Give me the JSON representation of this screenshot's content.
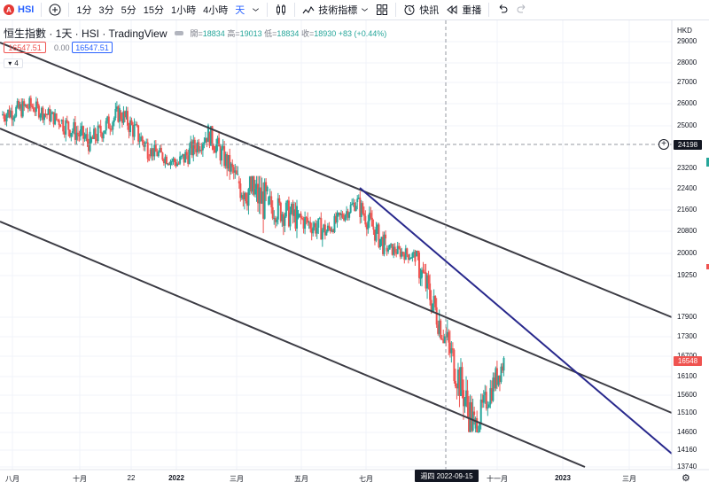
{
  "toolbar": {
    "symbol": "HSI",
    "symbol_logo": "A",
    "intervals": [
      "1分",
      "3分",
      "5分",
      "15分",
      "1小時",
      "4小時",
      "天"
    ],
    "active_interval": "天",
    "indicators_label": "技術指標",
    "alert_label": "快訊",
    "replay_label": "重播",
    "icons": [
      "add-symbol-icon",
      "candles-icon",
      "indicators-icon",
      "layout-icon",
      "alert-icon",
      "replay-icon",
      "undo-icon",
      "redo-icon"
    ]
  },
  "legend": {
    "name": "恒生指數 · 1天 · HSI · TradingView",
    "open_label": "開=",
    "open": "18834",
    "high_label": "高=",
    "high": "19013",
    "low_label": "低=",
    "low": "18834",
    "close_label": "收=",
    "close": "18930",
    "change": "+83 (+0.44%)",
    "price_red": "16547.51",
    "price_zero": "0.00",
    "price_blue": "16547.51",
    "collapse_count": "4"
  },
  "axis": {
    "currency": "HKD",
    "crosshair_price": "24198",
    "last_price": "16548",
    "crosshair_date": "週四 2022-09-15"
  },
  "colors": {
    "up": "#26a69a",
    "down": "#ef5350",
    "channel": "#3c3c44",
    "trendline": "#28288c"
  },
  "chart_data": {
    "type": "candlestick",
    "y_ticks": [
      29000,
      28000,
      27000,
      26000,
      25000,
      23200,
      22400,
      21600,
      20800,
      20000,
      19250,
      17900,
      17300,
      16700,
      16100,
      15600,
      15100,
      14600,
      14160,
      13740
    ],
    "x_ticks": [
      "八月",
      "十月",
      "22",
      "2022",
      "三月",
      "五月",
      "七月",
      "十一月",
      "2023",
      "三月"
    ],
    "ylim": [
      13500,
      29800
    ],
    "series": [
      {
        "period": "2021-07",
        "open": 25500,
        "close": 25900,
        "high": 27200,
        "low": 24800
      },
      {
        "period": "2021-08",
        "open": 25900,
        "close": 25200,
        "high": 26500,
        "low": 24500
      },
      {
        "period": "2021-09",
        "open": 25200,
        "close": 24300,
        "high": 26200,
        "low": 23600
      },
      {
        "period": "2021-10",
        "open": 24300,
        "close": 25600,
        "high": 26300,
        "low": 23800
      },
      {
        "period": "2021-11",
        "open": 25600,
        "close": 24000,
        "high": 26000,
        "low": 23300
      },
      {
        "period": "2021-12",
        "open": 24000,
        "close": 23400,
        "high": 24500,
        "low": 22700
      },
      {
        "period": "2022-01",
        "open": 23400,
        "close": 24700,
        "high": 25100,
        "low": 22600
      },
      {
        "period": "2022-02",
        "open": 24700,
        "close": 22700,
        "high": 25000,
        "low": 22300
      },
      {
        "period": "2022-03",
        "open": 22700,
        "close": 21800,
        "high": 22900,
        "low": 18300
      },
      {
        "period": "2022-04",
        "open": 21800,
        "close": 21300,
        "high": 22600,
        "low": 19600
      },
      {
        "period": "2022-05",
        "open": 21300,
        "close": 20800,
        "high": 21600,
        "low": 19300
      },
      {
        "period": "2022-06",
        "open": 20800,
        "close": 21900,
        "high": 22400,
        "low": 20700
      },
      {
        "period": "2022-07",
        "open": 21900,
        "close": 20200,
        "high": 22300,
        "low": 19900
      },
      {
        "period": "2022-08",
        "open": 20200,
        "close": 19900,
        "high": 20500,
        "low": 19200
      },
      {
        "period": "2022-09",
        "open": 19900,
        "close": 17300,
        "high": 20100,
        "low": 17100
      },
      {
        "period": "2022-10",
        "open": 17300,
        "close": 14700,
        "high": 17900,
        "low": 14600
      },
      {
        "period": "2022-11",
        "open": 14700,
        "close": 16548,
        "high": 16700,
        "low": 14600
      }
    ]
  }
}
